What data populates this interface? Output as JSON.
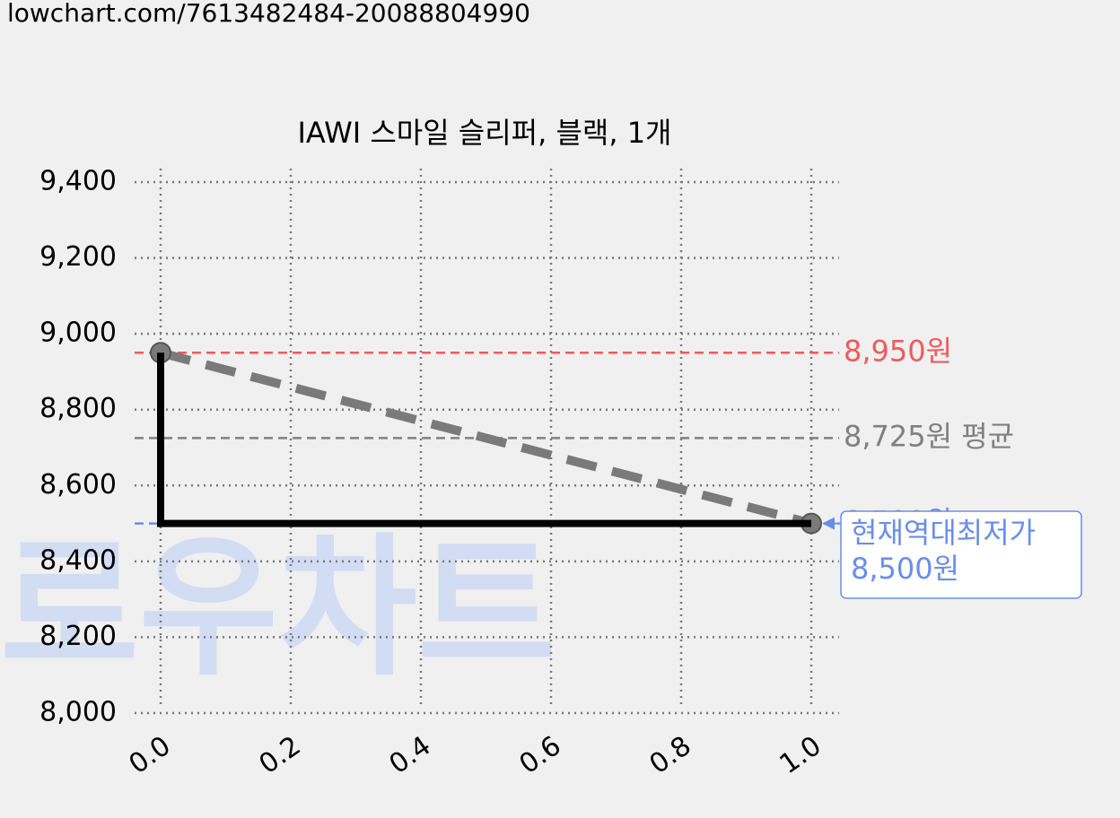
{
  "url": "lowchart.com/7613482484-20088804990",
  "chart_data": {
    "type": "line",
    "title": "IAWI 스마일 슬리퍼, 블랙, 1개",
    "watermark": "로우차트",
    "series": [
      {
        "x": [
          0,
          1
        ],
        "values": [
          8950,
          8500
        ],
        "color": "#7a7a7a",
        "dash": true,
        "markers": true
      },
      {
        "x": [
          0,
          0,
          1
        ],
        "values": [
          8950,
          8500,
          8500
        ],
        "color": "#000000",
        "dash": false,
        "markers": false
      }
    ],
    "hlines": [
      {
        "value": 8950,
        "label": "8,950원",
        "color": "#f05a5a"
      },
      {
        "value": 8725,
        "label": "8,725원 평균",
        "color": "#808080"
      },
      {
        "value": 8500,
        "label": "8,500원",
        "color": "#6a8ee8"
      }
    ],
    "annotation": {
      "lines": [
        "현재역대최저가",
        "8,500원"
      ],
      "x": 1,
      "y": 8500,
      "color": "#6a8ee8"
    },
    "xlim": [
      0,
      1
    ],
    "xticks": [
      {
        "value": 0,
        "label": "0.0"
      },
      {
        "value": 0.2,
        "label": "0.2"
      },
      {
        "value": 0.4,
        "label": "0.4"
      },
      {
        "value": 0.6,
        "label": "0.6"
      },
      {
        "value": 0.8,
        "label": "0.8"
      },
      {
        "value": 1,
        "label": "1.0"
      }
    ],
    "ylim": [
      8000,
      9400
    ],
    "yticks": [
      {
        "value": 8000,
        "label": "8,000"
      },
      {
        "value": 8200,
        "label": "8,200"
      },
      {
        "value": 8400,
        "label": "8,400"
      },
      {
        "value": 8600,
        "label": "8,600"
      },
      {
        "value": 8800,
        "label": "8,800"
      },
      {
        "value": 9000,
        "label": "9,000"
      },
      {
        "value": 9200,
        "label": "9,200"
      },
      {
        "value": 9400,
        "label": "9,400"
      }
    ],
    "grid": true
  }
}
